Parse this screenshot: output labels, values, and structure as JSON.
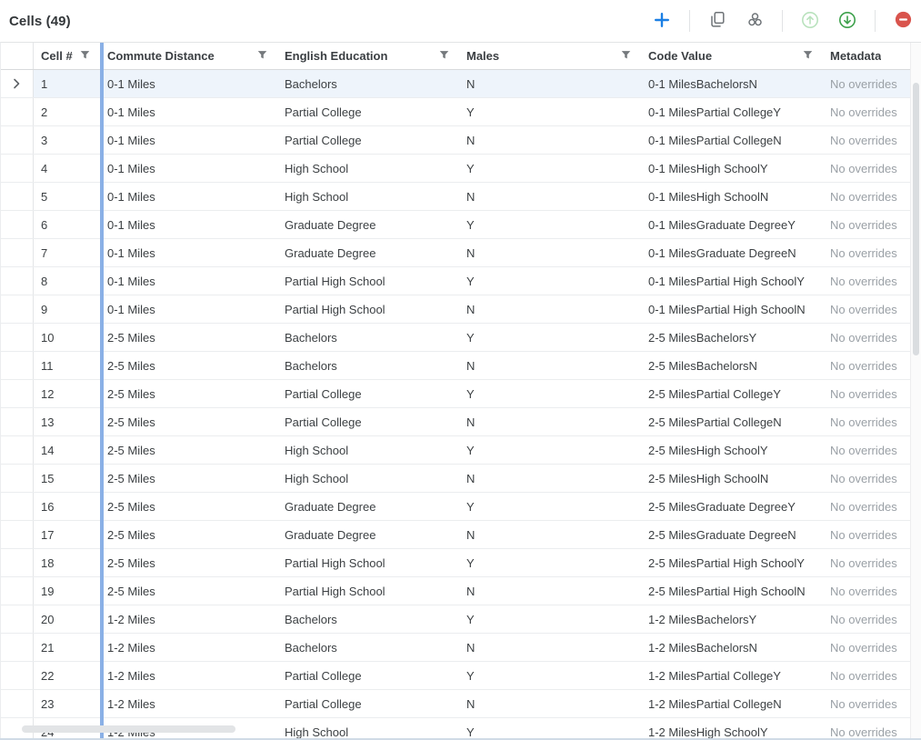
{
  "header": {
    "title": "Cells (49)"
  },
  "toolbar": {
    "accent_color": "#1b7fe4",
    "icon_gray": "#6f7478",
    "green_enabled": "#3da14b",
    "green_disabled": "#b9e2bd",
    "red": "#d9544d",
    "buttons": [
      {
        "name": "add",
        "icon": "plus-icon",
        "enabled": true
      },
      {
        "name": "copy",
        "icon": "copy-icon",
        "enabled": true
      },
      {
        "name": "combine",
        "icon": "cluster-icon",
        "enabled": true
      },
      {
        "name": "upload",
        "icon": "circle-arrow-up-icon",
        "enabled": false
      },
      {
        "name": "download",
        "icon": "circle-arrow-down-icon",
        "enabled": true
      },
      {
        "name": "remove",
        "icon": "circle-minus-icon",
        "enabled": true
      }
    ]
  },
  "table": {
    "selected_row_number": 1,
    "pinned_divider_color": "#8ab0e6",
    "selected_row_bg": "#eef4fb",
    "columns": [
      {
        "key": "expander",
        "label": "",
        "filter": false,
        "class": "c-exp"
      },
      {
        "key": "num",
        "label": "Cell #",
        "filter": true,
        "class": "c-num"
      },
      {
        "key": "commute",
        "label": "Commute Distance",
        "filter": true,
        "class": "c-commute"
      },
      {
        "key": "education",
        "label": "English Education",
        "filter": true,
        "class": "c-edu"
      },
      {
        "key": "males",
        "label": "Males",
        "filter": true,
        "class": "c-males"
      },
      {
        "key": "code",
        "label": "Code Value",
        "filter": true,
        "class": "c-code"
      },
      {
        "key": "metadata",
        "label": "Metadata",
        "filter": false,
        "class": "c-meta"
      }
    ],
    "rows": [
      {
        "num": "1",
        "commute": "0-1 Miles",
        "education": "Bachelors",
        "males": "N",
        "code": "0-1 MilesBachelorsN",
        "metadata": "No overrides"
      },
      {
        "num": "2",
        "commute": "0-1 Miles",
        "education": "Partial College",
        "males": "Y",
        "code": "0-1 MilesPartial CollegeY",
        "metadata": "No overrides"
      },
      {
        "num": "3",
        "commute": "0-1 Miles",
        "education": "Partial College",
        "males": "N",
        "code": "0-1 MilesPartial CollegeN",
        "metadata": "No overrides"
      },
      {
        "num": "4",
        "commute": "0-1 Miles",
        "education": "High School",
        "males": "Y",
        "code": "0-1 MilesHigh SchoolY",
        "metadata": "No overrides"
      },
      {
        "num": "5",
        "commute": "0-1 Miles",
        "education": "High School",
        "males": "N",
        "code": "0-1 MilesHigh SchoolN",
        "metadata": "No overrides"
      },
      {
        "num": "6",
        "commute": "0-1 Miles",
        "education": "Graduate Degree",
        "males": "Y",
        "code": "0-1 MilesGraduate DegreeY",
        "metadata": "No overrides"
      },
      {
        "num": "7",
        "commute": "0-1 Miles",
        "education": "Graduate Degree",
        "males": "N",
        "code": "0-1 MilesGraduate DegreeN",
        "metadata": "No overrides"
      },
      {
        "num": "8",
        "commute": "0-1 Miles",
        "education": "Partial High School",
        "males": "Y",
        "code": "0-1 MilesPartial High SchoolY",
        "metadata": "No overrides"
      },
      {
        "num": "9",
        "commute": "0-1 Miles",
        "education": "Partial High School",
        "males": "N",
        "code": "0-1 MilesPartial High SchoolN",
        "metadata": "No overrides"
      },
      {
        "num": "10",
        "commute": "2-5 Miles",
        "education": "Bachelors",
        "males": "Y",
        "code": "2-5 MilesBachelorsY",
        "metadata": "No overrides"
      },
      {
        "num": "11",
        "commute": "2-5 Miles",
        "education": "Bachelors",
        "males": "N",
        "code": "2-5 MilesBachelorsN",
        "metadata": "No overrides"
      },
      {
        "num": "12",
        "commute": "2-5 Miles",
        "education": "Partial College",
        "males": "Y",
        "code": "2-5 MilesPartial CollegeY",
        "metadata": "No overrides"
      },
      {
        "num": "13",
        "commute": "2-5 Miles",
        "education": "Partial College",
        "males": "N",
        "code": "2-5 MilesPartial CollegeN",
        "metadata": "No overrides"
      },
      {
        "num": "14",
        "commute": "2-5 Miles",
        "education": "High School",
        "males": "Y",
        "code": "2-5 MilesHigh SchoolY",
        "metadata": "No overrides"
      },
      {
        "num": "15",
        "commute": "2-5 Miles",
        "education": "High School",
        "males": "N",
        "code": "2-5 MilesHigh SchoolN",
        "metadata": "No overrides"
      },
      {
        "num": "16",
        "commute": "2-5 Miles",
        "education": "Graduate Degree",
        "males": "Y",
        "code": "2-5 MilesGraduate DegreeY",
        "metadata": "No overrides"
      },
      {
        "num": "17",
        "commute": "2-5 Miles",
        "education": "Graduate Degree",
        "males": "N",
        "code": "2-5 MilesGraduate DegreeN",
        "metadata": "No overrides"
      },
      {
        "num": "18",
        "commute": "2-5 Miles",
        "education": "Partial High School",
        "males": "Y",
        "code": "2-5 MilesPartial High SchoolY",
        "metadata": "No overrides"
      },
      {
        "num": "19",
        "commute": "2-5 Miles",
        "education": "Partial High School",
        "males": "N",
        "code": "2-5 MilesPartial High SchoolN",
        "metadata": "No overrides"
      },
      {
        "num": "20",
        "commute": "1-2 Miles",
        "education": "Bachelors",
        "males": "Y",
        "code": "1-2 MilesBachelorsY",
        "metadata": "No overrides"
      },
      {
        "num": "21",
        "commute": "1-2 Miles",
        "education": "Bachelors",
        "males": "N",
        "code": "1-2 MilesBachelorsN",
        "metadata": "No overrides"
      },
      {
        "num": "22",
        "commute": "1-2 Miles",
        "education": "Partial College",
        "males": "Y",
        "code": "1-2 MilesPartial CollegeY",
        "metadata": "No overrides"
      },
      {
        "num": "23",
        "commute": "1-2 Miles",
        "education": "Partial College",
        "males": "N",
        "code": "1-2 MilesPartial CollegeN",
        "metadata": "No overrides"
      },
      {
        "num": "24",
        "commute": "1-2 Miles",
        "education": "High School",
        "males": "Y",
        "code": "1-2 MilesHigh SchoolY",
        "metadata": "No overrides"
      }
    ]
  }
}
